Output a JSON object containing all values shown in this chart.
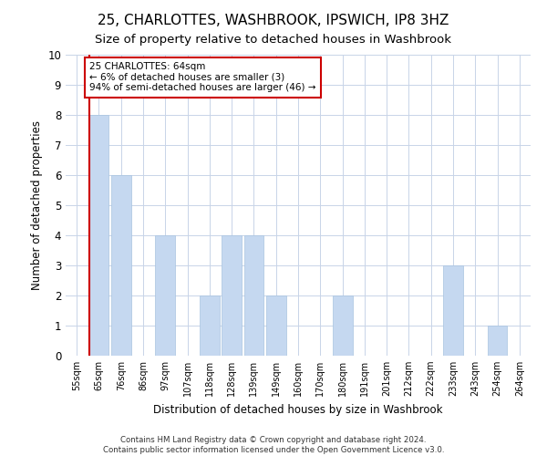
{
  "title": "25, CHARLOTTES, WASHBROOK, IPSWICH, IP8 3HZ",
  "subtitle": "Size of property relative to detached houses in Washbrook",
  "xlabel": "Distribution of detached houses by size in Washbrook",
  "ylabel": "Number of detached properties",
  "categories": [
    "55sqm",
    "65sqm",
    "76sqm",
    "86sqm",
    "97sqm",
    "107sqm",
    "118sqm",
    "128sqm",
    "139sqm",
    "149sqm",
    "160sqm",
    "170sqm",
    "180sqm",
    "191sqm",
    "201sqm",
    "212sqm",
    "222sqm",
    "233sqm",
    "243sqm",
    "254sqm",
    "264sqm"
  ],
  "values": [
    0,
    8,
    6,
    0,
    4,
    0,
    2,
    4,
    4,
    2,
    0,
    0,
    2,
    0,
    0,
    0,
    0,
    3,
    0,
    1,
    0
  ],
  "bar_color": "#c5d8f0",
  "bar_edge_color": "#a8c4e0",
  "highlight_color": "#cc0000",
  "annotation_title": "25 CHARLOTTES: 64sqm",
  "annotation_line1": "← 6% of detached houses are smaller (3)",
  "annotation_line2": "94% of semi-detached houses are larger (46) →",
  "annotation_box_color": "#ffffff",
  "annotation_box_edge": "#cc0000",
  "ylim": [
    0,
    10
  ],
  "yticks": [
    0,
    1,
    2,
    3,
    4,
    5,
    6,
    7,
    8,
    9,
    10
  ],
  "footnote1": "Contains HM Land Registry data © Crown copyright and database right 2024.",
  "footnote2": "Contains public sector information licensed under the Open Government Licence v3.0.",
  "title_fontsize": 11,
  "subtitle_fontsize": 9.5,
  "background_color": "#ffffff",
  "grid_color": "#c8d4e8"
}
